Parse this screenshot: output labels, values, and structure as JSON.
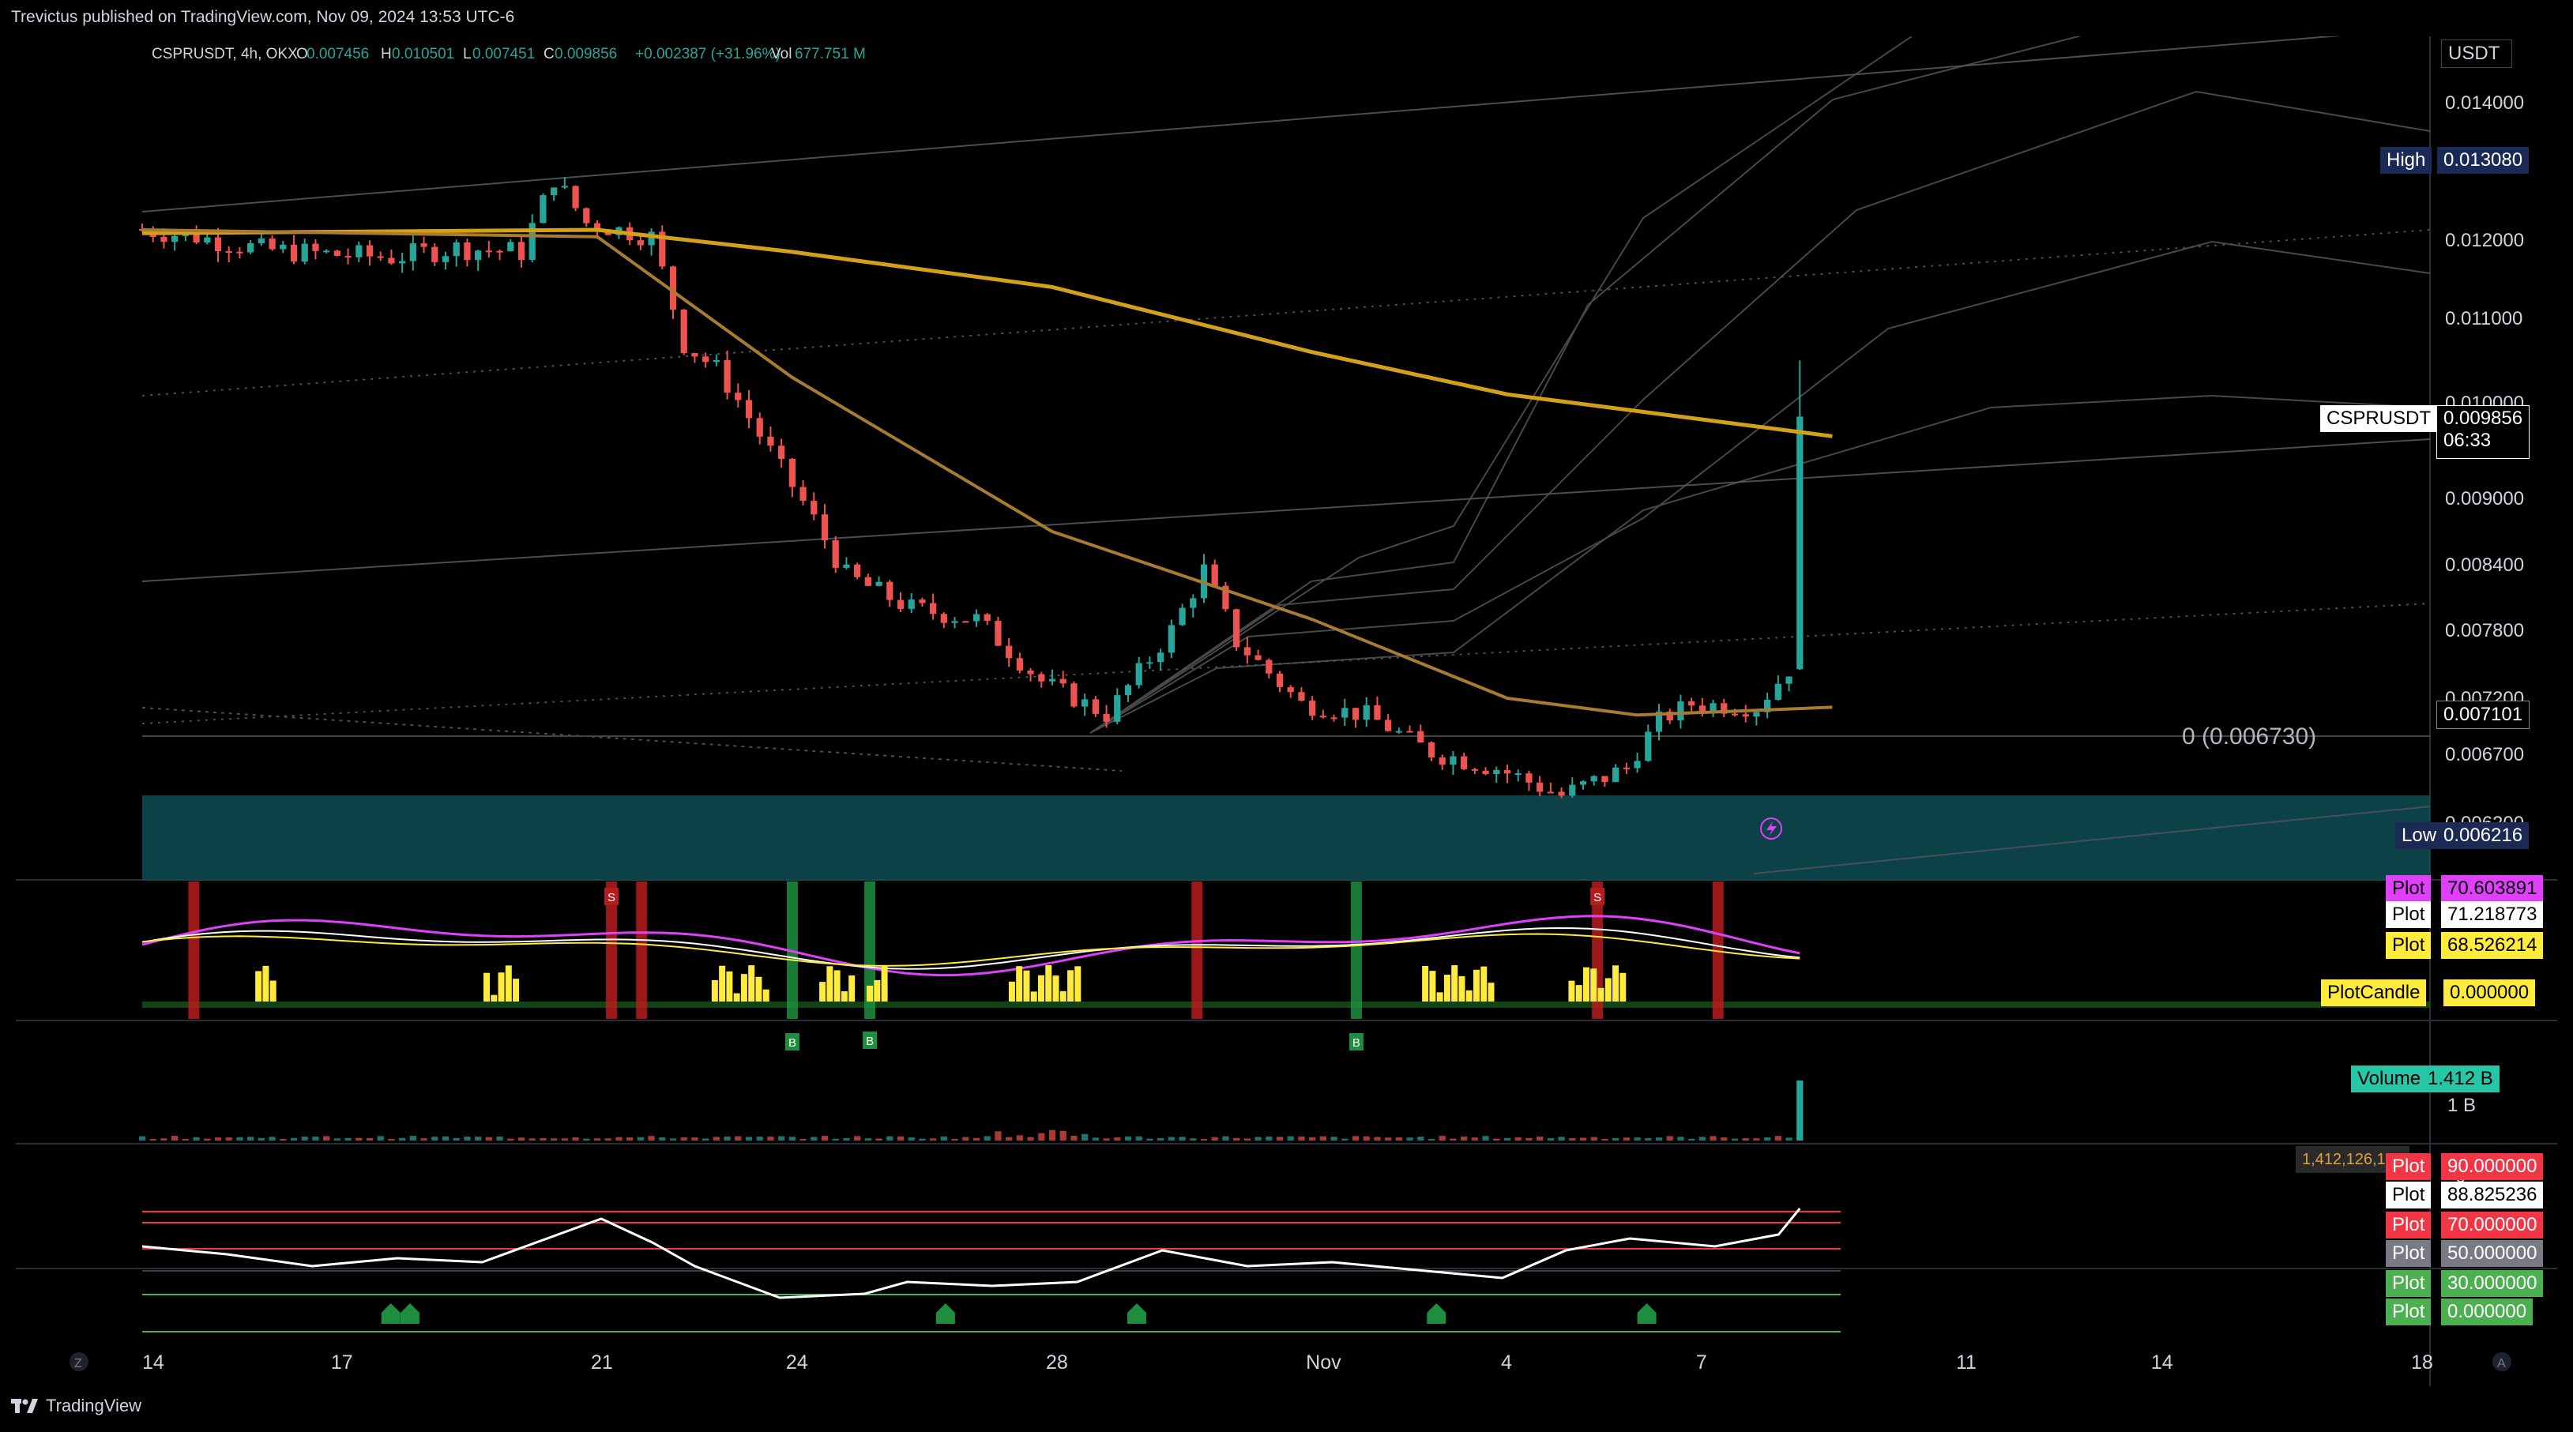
{
  "header": {
    "publish_text": "Trevictus published on TradingView.com, Nov 09, 2024 13:53 UTC-6"
  },
  "footer": {
    "brand": "TradingView"
  },
  "legend": {
    "symbol": "CSPRUSDT, 4h, OKX",
    "o_label": "O",
    "o_value": "0.007456",
    "h_label": "H",
    "h_value": "0.010501",
    "l_label": "L",
    "l_value": "0.007451",
    "c_label": "C",
    "c_value": "0.009856",
    "change": "+0.002387 (+31.96%)",
    "vol_label": "Vol",
    "vol_value": "677.751 M"
  },
  "price_axis": {
    "currency": "USDT",
    "ticks": [
      "0.014000",
      "0.012000",
      "0.011000",
      "0.010000",
      "0.009000",
      "0.008400",
      "0.007800",
      "0.007200",
      "0.006700",
      "0.006200"
    ],
    "high_label": "High",
    "high_value": "0.013080",
    "low_label": "Low",
    "low_value": "0.006216",
    "symbol_tag": "CSPRUSDT",
    "last_price": "0.009856",
    "countdown": "06:33",
    "ma_value": "0.007101",
    "fib_zero": "0 (0.006730)"
  },
  "time_axis": {
    "ticks": [
      "14",
      "17",
      "21",
      "24",
      "28",
      "Nov",
      "4",
      "7",
      "11",
      "14",
      "18"
    ]
  },
  "indicator_labels": {
    "osc": [
      {
        "name": "Plot",
        "value": "70.603891",
        "color": "#e040fb"
      },
      {
        "name": "Plot",
        "value": "71.218773",
        "color": "#ffffff"
      },
      {
        "name": "Plot",
        "value": "68.526214",
        "color": "#ffeb3b"
      },
      {
        "name": "PlotCandle",
        "value": "0.000000",
        "color": "#ffeb3b"
      }
    ],
    "volume": {
      "name": "Volume",
      "value": "1.412 B",
      "color": "#26c6a6",
      "tick_1b": "1 B",
      "tick_0": "0",
      "exact": "1,412,126,132"
    },
    "rsi": [
      {
        "name": "Plot",
        "value": "90.000000",
        "color": "#f23645"
      },
      {
        "name": "Plot",
        "value": "88.825236",
        "color": "#ffffff"
      },
      {
        "name": "Plot",
        "value": "70.000000",
        "color": "#f23645"
      },
      {
        "name": "Plot",
        "value": "50.000000",
        "color": "#787b86"
      },
      {
        "name": "Plot",
        "value": "30.000000",
        "color": "#4caf50"
      },
      {
        "name": "Plot",
        "value": "0.000000",
        "color": "#4caf50"
      }
    ]
  },
  "signal_letters": {
    "buy": "B",
    "sell": "S"
  },
  "colors": {
    "up": "#26a69a",
    "down": "#ef5350",
    "ma_slow": "#d4a017",
    "ma_fast": "#c8952a",
    "zone": "#0f4c55",
    "volume_up": "#26a69a",
    "rsi_line": "#ffffff"
  },
  "chart_data": {
    "type": "candlestick",
    "symbol": "CSPRUSDT",
    "timeframe": "4h",
    "exchange": "OKX",
    "ylim": [
      0.0062,
      0.0145
    ],
    "x_range": [
      "Oct 14 2024",
      "Nov 18 2024"
    ],
    "ohlc_last": {
      "open": 0.007456,
      "high": 0.010501,
      "low": 0.007451,
      "close": 0.009856
    },
    "close_path": [
      [
        "Oct 14",
        0.01216
      ],
      [
        "Oct 15",
        0.01205
      ],
      [
        "Oct 16",
        0.01188
      ],
      [
        "Oct 17",
        0.01182
      ],
      [
        "Oct 18",
        0.01178
      ],
      [
        "Oct 19",
        0.0119
      ],
      [
        "Oct 20",
        0.01185
      ],
      [
        "Oct 20 12:00",
        0.0129
      ],
      [
        "Oct 21",
        0.01225
      ],
      [
        "Oct 22",
        0.01205
      ],
      [
        "Oct 22 12:00",
        0.0107
      ],
      [
        "Oct 23",
        0.0104
      ],
      [
        "Oct 24",
        0.0093
      ],
      [
        "Oct 25",
        0.0083
      ],
      [
        "Oct 26",
        0.008
      ],
      [
        "Oct 27",
        0.0079
      ],
      [
        "Oct 28",
        0.00735
      ],
      [
        "Oct 29",
        0.00705
      ],
      [
        "Oct 30",
        0.0078
      ],
      [
        "Oct 30 12:00",
        0.00835
      ],
      [
        "Oct 31",
        0.0077
      ],
      [
        "Nov 1",
        0.00715
      ],
      [
        "Nov 2",
        0.00705
      ],
      [
        "Nov 3",
        0.00672
      ],
      [
        "Nov 4",
        0.0066
      ],
      [
        "Nov 5",
        0.0064
      ],
      [
        "Nov 6",
        0.0066
      ],
      [
        "Nov 6 12:00",
        0.007
      ],
      [
        "Nov 7",
        0.00715
      ],
      [
        "Nov 8",
        0.00712
      ],
      [
        "Nov 8 12:00",
        0.00746
      ],
      [
        "Nov 9",
        0.009856
      ]
    ],
    "ma_slow_path": [
      [
        "Oct 14",
        0.0121
      ],
      [
        "Oct 21",
        0.01215
      ],
      [
        "Oct 24",
        0.01185
      ],
      [
        "Oct 28",
        0.0114
      ],
      [
        "Nov 1",
        0.0106
      ],
      [
        "Nov 4",
        0.0101
      ],
      [
        "Nov 9",
        0.00965
      ]
    ],
    "ma_fast_path": [
      [
        "Oct 14",
        0.01215
      ],
      [
        "Oct 21",
        0.01205
      ],
      [
        "Oct 24",
        0.0103
      ],
      [
        "Oct 28",
        0.0087
      ],
      [
        "Nov 1",
        0.0079
      ],
      [
        "Nov 4",
        0.0072
      ],
      [
        "Nov 6",
        0.00705
      ],
      [
        "Nov 9",
        0.00712
      ]
    ],
    "high": 0.01308,
    "low": 0.006216,
    "fib_zero": 0.00673,
    "volume_last": 1412126132,
    "rsi_last": 88.825236,
    "rsi_levels": [
      90,
      70,
      50,
      30,
      0
    ]
  }
}
